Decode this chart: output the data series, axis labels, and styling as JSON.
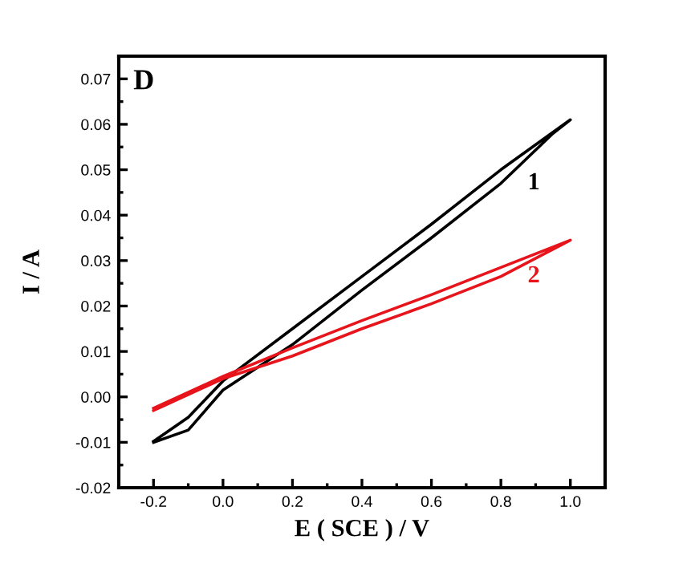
{
  "chart_data": {
    "type": "line",
    "xlabel": "E ( SCE ) / V",
    "ylabel": "I / A",
    "annotations": [
      "D"
    ],
    "xlim": [
      -0.3,
      1.1
    ],
    "ylim": [
      -0.02,
      0.075
    ],
    "xticks": [
      {
        "value": -0.2,
        "label": "-0.2"
      },
      {
        "value": 0.0,
        "label": "0.0"
      },
      {
        "value": 0.2,
        "label": "0.2"
      },
      {
        "value": 0.4,
        "label": "0.4"
      },
      {
        "value": 0.6,
        "label": "0.6"
      },
      {
        "value": 0.8,
        "label": "0.8"
      },
      {
        "value": 1.0,
        "label": "1.0"
      }
    ],
    "yticks": [
      {
        "value": -0.02,
        "label": "-0.02"
      },
      {
        "value": -0.01,
        "label": "-0.01"
      },
      {
        "value": 0.0,
        "label": "0.00"
      },
      {
        "value": 0.01,
        "label": "0.01"
      },
      {
        "value": 0.02,
        "label": "0.02"
      },
      {
        "value": 0.03,
        "label": "0.03"
      },
      {
        "value": 0.04,
        "label": "0.04"
      },
      {
        "value": 0.05,
        "label": "0.05"
      },
      {
        "value": 0.06,
        "label": "0.06"
      },
      {
        "value": 0.07,
        "label": "0.07"
      }
    ],
    "grid": false,
    "legend": false,
    "marker": "none",
    "line_style": "solid",
    "series": [
      {
        "name": "1",
        "color": "#000000",
        "x": [
          -0.2,
          -0.1,
          0.0,
          0.2,
          0.4,
          0.6,
          0.8,
          0.95,
          1.0,
          0.8,
          0.6,
          0.4,
          0.2,
          0.0,
          -0.1,
          -0.2
        ],
        "values": [
          -0.01,
          -0.0073,
          0.0015,
          0.0115,
          0.0235,
          0.035,
          0.047,
          0.058,
          0.061,
          0.05,
          0.038,
          0.0265,
          0.015,
          0.0035,
          -0.0045,
          -0.0098
        ]
      },
      {
        "name": "2",
        "color": "#e8141c",
        "x": [
          -0.2,
          0.0,
          0.2,
          0.4,
          0.6,
          0.8,
          1.0,
          0.8,
          0.6,
          0.4,
          0.2,
          0.0,
          -0.2
        ],
        "values": [
          -0.003,
          0.004,
          0.009,
          0.015,
          0.0205,
          0.0265,
          0.0345,
          0.0285,
          0.0225,
          0.0168,
          0.0108,
          0.0045,
          -0.0025
        ]
      }
    ]
  }
}
